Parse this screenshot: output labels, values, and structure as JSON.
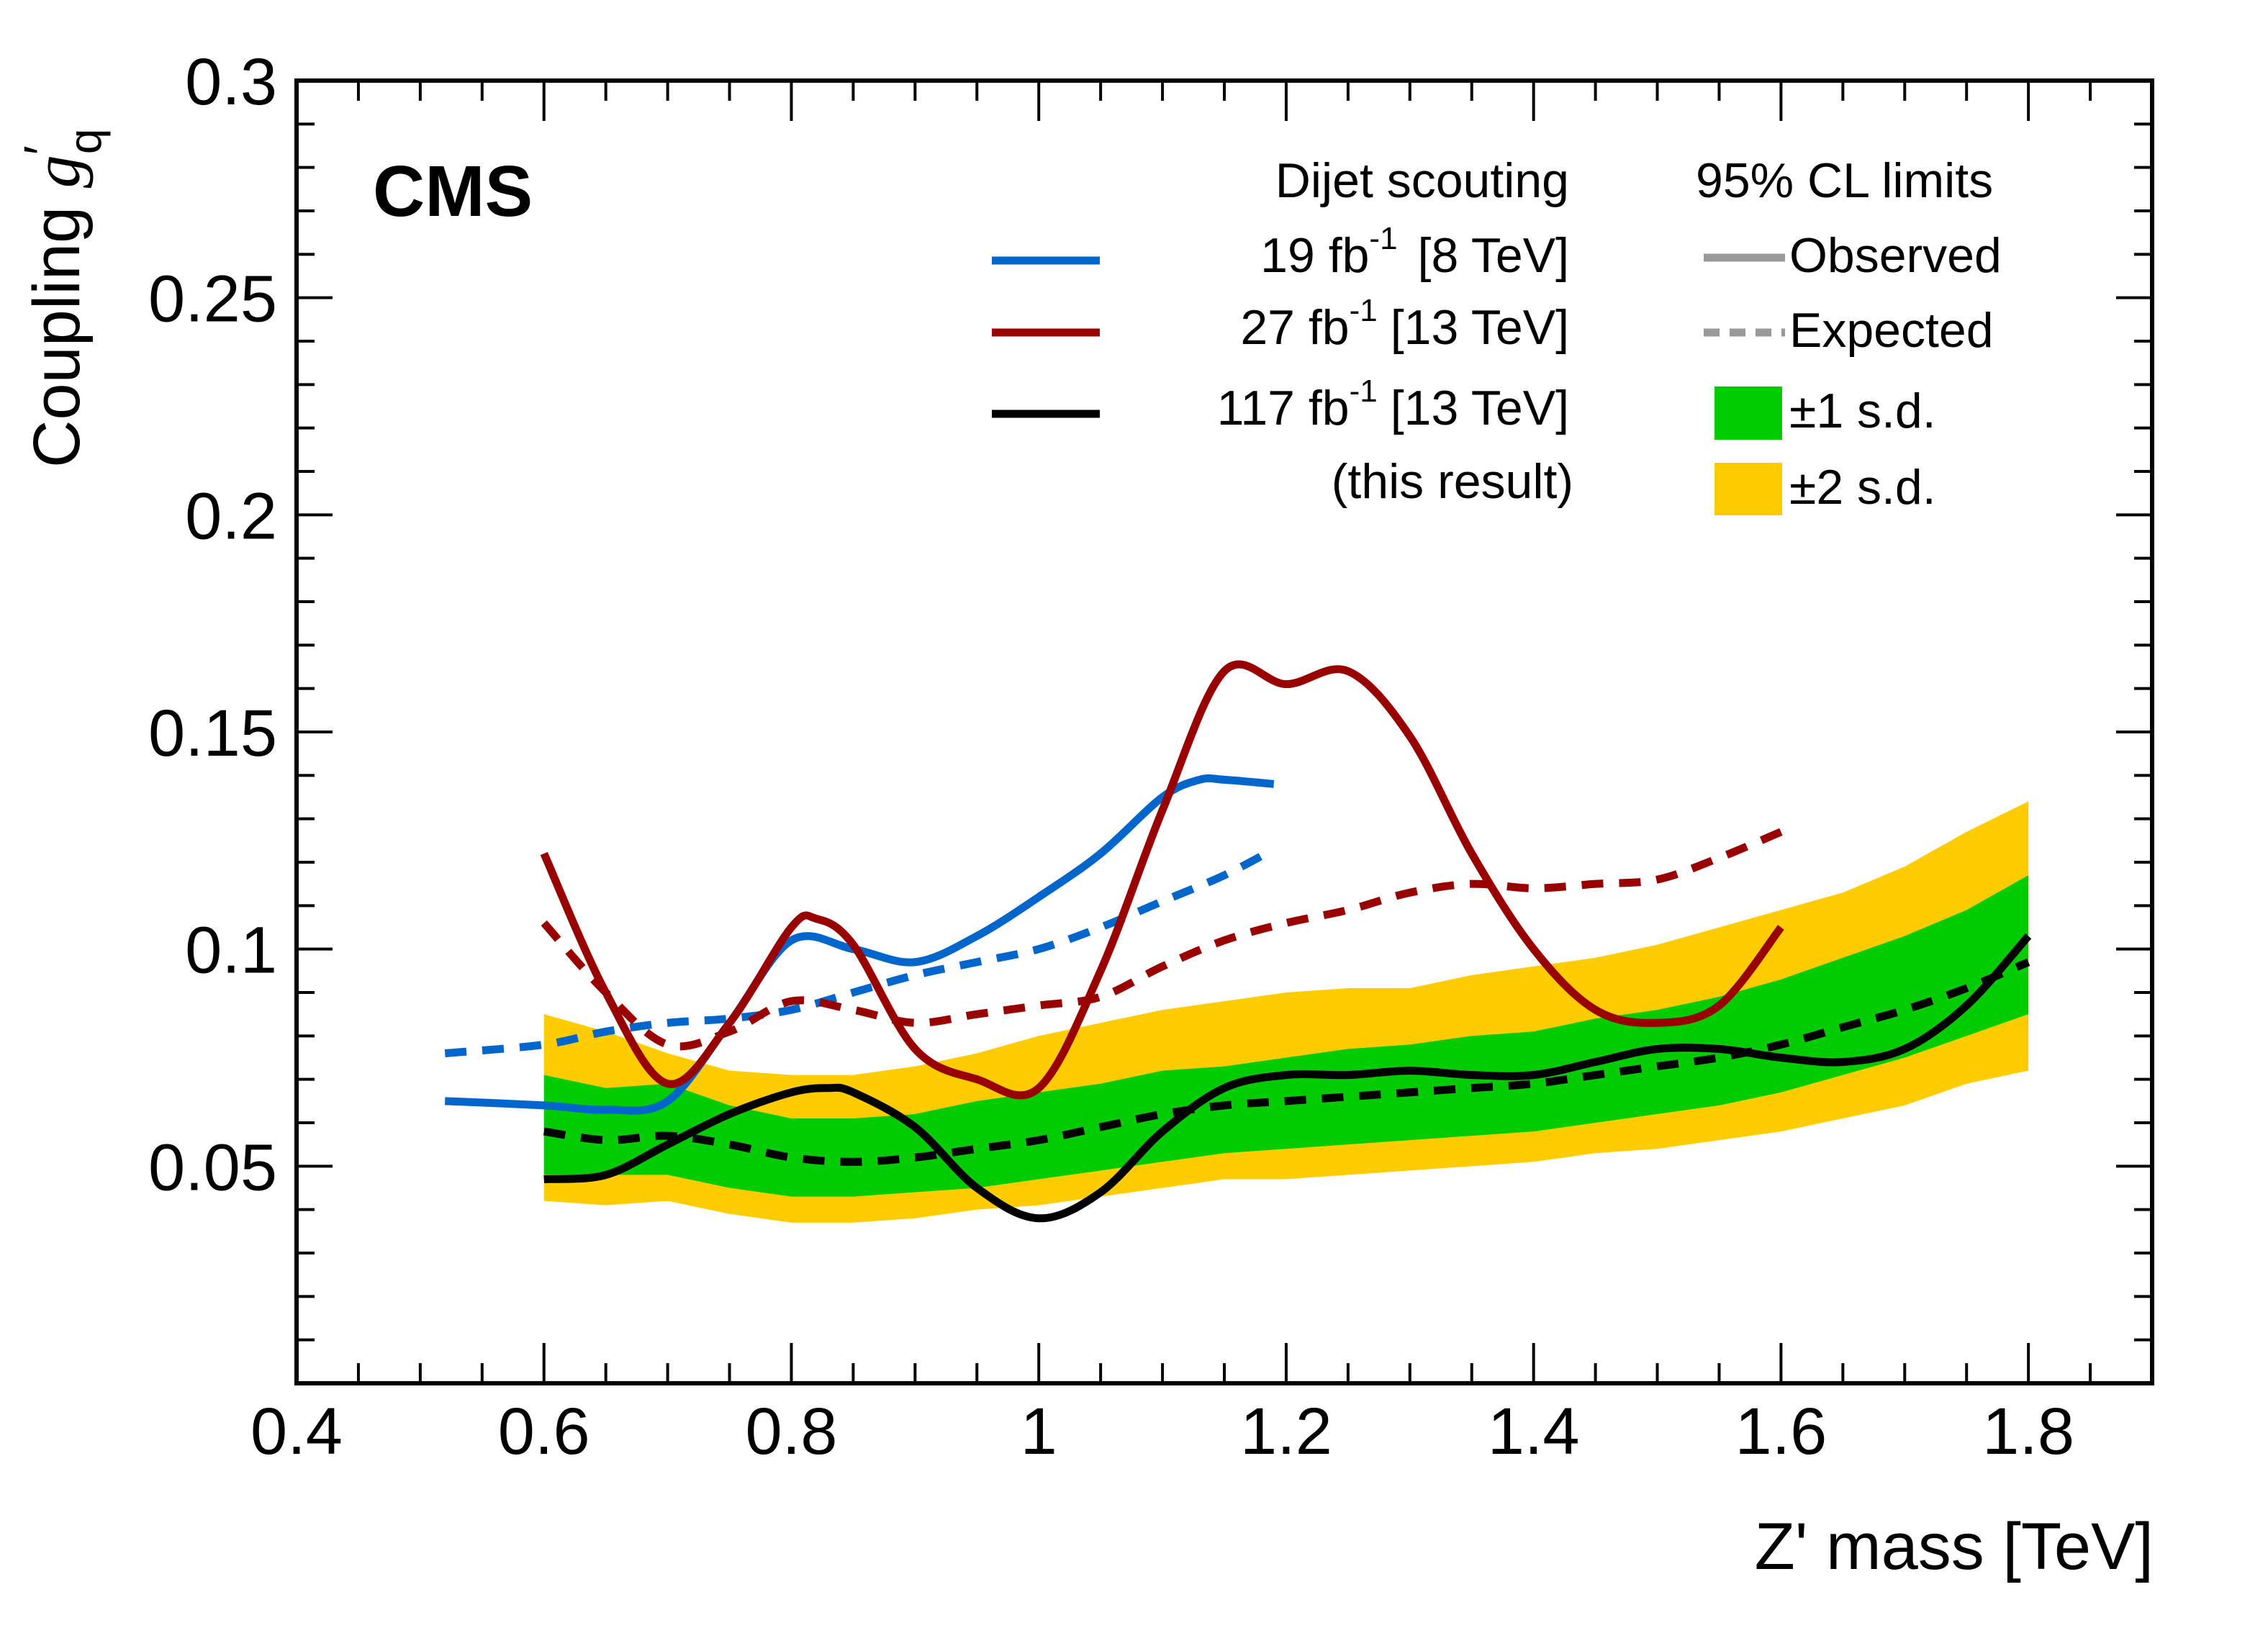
{
  "chart_data": {
    "type": "line",
    "experiment_label": "CMS",
    "title": "",
    "xlabel": "Z' mass [TeV]",
    "ylabel": "Coupling g'_q",
    "ylabel_parts": {
      "main": "Coupling ",
      "symbol": "g",
      "prime": "′",
      "subscript": "q"
    },
    "xlim": [
      0.4,
      1.9
    ],
    "ylim": [
      0.0,
      0.3
    ],
    "x_major_ticks": [
      0.4,
      0.6,
      0.8,
      1.0,
      1.2,
      1.4,
      1.6,
      1.8
    ],
    "x_tick_labels": [
      "0.4",
      "0.6",
      "0.8",
      "1",
      "1.2",
      "1.4",
      "1.6",
      "1.8"
    ],
    "x_minor_step": 0.05,
    "y_major_ticks": [
      0.05,
      0.1,
      0.15,
      0.2,
      0.25,
      0.3
    ],
    "y_tick_labels": [
      "0.05",
      "0.1",
      "0.15",
      "0.2",
      "0.25",
      "0.3"
    ],
    "y_minor_step": 0.01,
    "grid": false,
    "legend_position": "top-right",
    "legend": {
      "left_header": "Dijet scouting",
      "right_header": "95% CL limits",
      "datasets": [
        {
          "lumi": "19 fb",
          "exp": "-1",
          "energy": "[8 TeV]",
          "color": "#0066cc"
        },
        {
          "lumi": "27 fb",
          "exp": "-1",
          "energy": "[13 TeV]",
          "color": "#990000"
        },
        {
          "lumi": "117 fb",
          "exp": "-1",
          "energy": "[13 TeV]",
          "color": "#000000"
        }
      ],
      "note": "(this result)",
      "styles": [
        {
          "label": "Observed",
          "kind": "solid",
          "color": "#999999"
        },
        {
          "label": "Expected",
          "kind": "dashed",
          "color": "#999999"
        },
        {
          "label": "±1 s.d.",
          "kind": "fill",
          "color": "#00cc00"
        },
        {
          "label": "±2 s.d.",
          "kind": "fill",
          "color": "#ffcc00"
        }
      ]
    },
    "bands": {
      "x": [
        0.6,
        0.65,
        0.7,
        0.75,
        0.8,
        0.85,
        0.9,
        0.95,
        1.0,
        1.05,
        1.1,
        1.15,
        1.2,
        1.25,
        1.3,
        1.35,
        1.4,
        1.45,
        1.5,
        1.55,
        1.6,
        1.65,
        1.7,
        1.75,
        1.8
      ],
      "two_sigma": {
        "color": "#ffcc00",
        "upper": [
          0.085,
          0.081,
          0.076,
          0.072,
          0.071,
          0.071,
          0.073,
          0.076,
          0.08,
          0.083,
          0.086,
          0.088,
          0.09,
          0.091,
          0.091,
          0.094,
          0.096,
          0.098,
          0.101,
          0.105,
          0.109,
          0.113,
          0.119,
          0.127,
          0.134
        ],
        "lower": [
          0.042,
          0.041,
          0.042,
          0.039,
          0.037,
          0.037,
          0.038,
          0.04,
          0.041,
          0.043,
          0.045,
          0.047,
          0.047,
          0.048,
          0.049,
          0.05,
          0.051,
          0.053,
          0.054,
          0.056,
          0.058,
          0.061,
          0.064,
          0.069,
          0.072
        ]
      },
      "one_sigma": {
        "color": "#00cc00",
        "upper": [
          0.071,
          0.068,
          0.069,
          0.064,
          0.061,
          0.061,
          0.062,
          0.065,
          0.067,
          0.069,
          0.072,
          0.073,
          0.075,
          0.077,
          0.078,
          0.08,
          0.081,
          0.084,
          0.086,
          0.089,
          0.093,
          0.098,
          0.103,
          0.109,
          0.117
        ],
        "lower": [
          0.048,
          0.048,
          0.048,
          0.045,
          0.043,
          0.043,
          0.044,
          0.045,
          0.047,
          0.049,
          0.051,
          0.053,
          0.054,
          0.055,
          0.056,
          0.057,
          0.058,
          0.06,
          0.062,
          0.064,
          0.067,
          0.071,
          0.075,
          0.08,
          0.085
        ]
      }
    },
    "series": [
      {
        "name": "19 fb-1 [8 TeV] Expected",
        "color": "#0066cc",
        "style": "dashed",
        "x": [
          0.52,
          0.6,
          0.65,
          0.7,
          0.75,
          0.8,
          0.85,
          0.9,
          0.95,
          1.0,
          1.05,
          1.1,
          1.15,
          1.19
        ],
        "y": [
          0.076,
          0.078,
          0.081,
          0.083,
          0.084,
          0.086,
          0.09,
          0.094,
          0.097,
          0.1,
          0.105,
          0.111,
          0.117,
          0.123
        ]
      },
      {
        "name": "27 fb-1 [13 TeV] Expected",
        "color": "#990000",
        "style": "dashed",
        "x": [
          0.6,
          0.65,
          0.7,
          0.75,
          0.8,
          0.85,
          0.9,
          0.95,
          1.0,
          1.05,
          1.1,
          1.15,
          1.2,
          1.25,
          1.3,
          1.35,
          1.4,
          1.45,
          1.5,
          1.55,
          1.6
        ],
        "y": [
          0.106,
          0.09,
          0.078,
          0.081,
          0.088,
          0.086,
          0.083,
          0.085,
          0.087,
          0.089,
          0.096,
          0.102,
          0.106,
          0.109,
          0.113,
          0.115,
          0.114,
          0.115,
          0.116,
          0.121,
          0.127
        ]
      },
      {
        "name": "117 fb-1 [13 TeV] Expected",
        "color": "#000000",
        "style": "dashed",
        "x": [
          0.6,
          0.65,
          0.7,
          0.75,
          0.8,
          0.85,
          0.9,
          0.95,
          1.0,
          1.05,
          1.1,
          1.15,
          1.2,
          1.25,
          1.3,
          1.35,
          1.4,
          1.45,
          1.5,
          1.55,
          1.6,
          1.65,
          1.7,
          1.75,
          1.8
        ],
        "y": [
          0.058,
          0.056,
          0.057,
          0.055,
          0.052,
          0.051,
          0.052,
          0.054,
          0.056,
          0.059,
          0.062,
          0.064,
          0.065,
          0.066,
          0.067,
          0.068,
          0.069,
          0.071,
          0.073,
          0.075,
          0.078,
          0.082,
          0.086,
          0.091,
          0.097
        ]
      },
      {
        "name": "19 fb-1 [8 TeV] Observed",
        "color": "#0066cc",
        "style": "solid",
        "x": [
          0.52,
          0.6,
          0.65,
          0.7,
          0.75,
          0.8,
          0.85,
          0.9,
          0.95,
          1.0,
          1.05,
          1.1,
          1.13,
          1.15,
          1.19
        ],
        "y": [
          0.065,
          0.064,
          0.063,
          0.065,
          0.083,
          0.102,
          0.1,
          0.097,
          0.103,
          0.112,
          0.122,
          0.135,
          0.139,
          0.139,
          0.138
        ]
      },
      {
        "name": "27 fb-1 [13 TeV] Observed",
        "color": "#990000",
        "style": "solid",
        "x": [
          0.6,
          0.65,
          0.7,
          0.75,
          0.8,
          0.82,
          0.85,
          0.9,
          0.95,
          1.0,
          1.05,
          1.1,
          1.15,
          1.2,
          1.25,
          1.3,
          1.35,
          1.4,
          1.45,
          1.5,
          1.55,
          1.6
        ],
        "y": [
          0.122,
          0.09,
          0.069,
          0.083,
          0.105,
          0.107,
          0.101,
          0.077,
          0.07,
          0.068,
          0.095,
          0.132,
          0.164,
          0.161,
          0.164,
          0.149,
          0.122,
          0.1,
          0.086,
          0.083,
          0.087,
          0.105
        ]
      },
      {
        "name": "117 fb-1 [13 TeV] Observed (this result)",
        "color": "#000000",
        "style": "solid",
        "x": [
          0.6,
          0.65,
          0.7,
          0.75,
          0.8,
          0.83,
          0.85,
          0.9,
          0.95,
          1.0,
          1.05,
          1.1,
          1.15,
          1.2,
          1.25,
          1.3,
          1.35,
          1.4,
          1.45,
          1.5,
          1.55,
          1.6,
          1.65,
          1.7,
          1.75,
          1.8
        ],
        "y": [
          0.047,
          0.048,
          0.055,
          0.062,
          0.067,
          0.068,
          0.067,
          0.059,
          0.045,
          0.038,
          0.044,
          0.058,
          0.068,
          0.071,
          0.071,
          0.072,
          0.071,
          0.071,
          0.074,
          0.077,
          0.077,
          0.075,
          0.074,
          0.077,
          0.087,
          0.103
        ]
      }
    ]
  }
}
